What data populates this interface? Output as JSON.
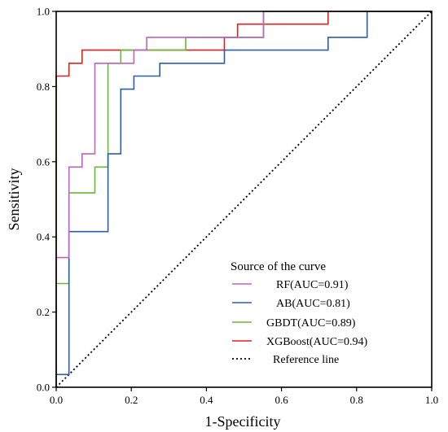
{
  "chart_data": {
    "type": "line",
    "xlabel": "1-Specificity",
    "ylabel": "Sensitivity",
    "xlim": [
      0,
      1
    ],
    "ylim": [
      0,
      1
    ],
    "x_ticks": [
      "0.0",
      "0.2",
      "0.4",
      "0.6",
      "0.8",
      "1.0"
    ],
    "y_ticks": [
      "0.0",
      "0.2",
      "0.4",
      "0.6",
      "0.8",
      "1.0"
    ],
    "grid": false,
    "legend": {
      "title": "Source of the curve",
      "position": "bottom-right"
    },
    "series": [
      {
        "name": "RF(AUC=0.91)",
        "color": "#c060c0",
        "points": [
          [
            0,
            0
          ],
          [
            0,
            0.345
          ],
          [
            0.034,
            0.345
          ],
          [
            0.034,
            0.586
          ],
          [
            0.069,
            0.586
          ],
          [
            0.069,
            0.621
          ],
          [
            0.103,
            0.621
          ],
          [
            0.103,
            0.862
          ],
          [
            0.207,
            0.862
          ],
          [
            0.207,
            0.897
          ],
          [
            0.241,
            0.897
          ],
          [
            0.241,
            0.931
          ],
          [
            0.552,
            0.931
          ],
          [
            0.552,
            1.0
          ],
          [
            1.0,
            1.0
          ]
        ]
      },
      {
        "name": "AB(AUC=0.81)",
        "color": "#2a5db0",
        "points": [
          [
            0,
            0
          ],
          [
            0,
            0.034
          ],
          [
            0.034,
            0.034
          ],
          [
            0.034,
            0.414
          ],
          [
            0.138,
            0.414
          ],
          [
            0.138,
            0.621
          ],
          [
            0.172,
            0.621
          ],
          [
            0.172,
            0.793
          ],
          [
            0.207,
            0.793
          ],
          [
            0.207,
            0.828
          ],
          [
            0.276,
            0.828
          ],
          [
            0.276,
            0.862
          ],
          [
            0.448,
            0.862
          ],
          [
            0.448,
            0.897
          ],
          [
            0.724,
            0.897
          ],
          [
            0.724,
            0.931
          ],
          [
            0.828,
            0.931
          ],
          [
            0.828,
            1.0
          ],
          [
            1.0,
            1.0
          ]
        ]
      },
      {
        "name": "GBDT(AUC=0.89)",
        "color": "#66bb33",
        "points": [
          [
            0,
            0
          ],
          [
            0,
            0.276
          ],
          [
            0.034,
            0.276
          ],
          [
            0.034,
            0.517
          ],
          [
            0.103,
            0.517
          ],
          [
            0.103,
            0.586
          ],
          [
            0.138,
            0.586
          ],
          [
            0.138,
            0.862
          ],
          [
            0.172,
            0.862
          ],
          [
            0.172,
            0.897
          ],
          [
            0.345,
            0.897
          ],
          [
            0.345,
            0.931
          ],
          [
            0.552,
            0.931
          ],
          [
            0.552,
            1.0
          ],
          [
            1.0,
            1.0
          ]
        ]
      },
      {
        "name": "XGBoost(AUC=0.94)",
        "color": "#e02020",
        "points": [
          [
            0,
            0
          ],
          [
            0,
            0.828
          ],
          [
            0.034,
            0.828
          ],
          [
            0.034,
            0.862
          ],
          [
            0.069,
            0.862
          ],
          [
            0.069,
            0.897
          ],
          [
            0.448,
            0.897
          ],
          [
            0.448,
            0.931
          ],
          [
            0.483,
            0.931
          ],
          [
            0.483,
            0.966
          ],
          [
            0.724,
            0.966
          ],
          [
            0.724,
            1.0
          ],
          [
            1.0,
            1.0
          ]
        ]
      },
      {
        "name": "Reference line",
        "color": "#000000",
        "dashed": true,
        "points": [
          [
            0,
            0
          ],
          [
            1,
            1
          ]
        ]
      }
    ]
  }
}
